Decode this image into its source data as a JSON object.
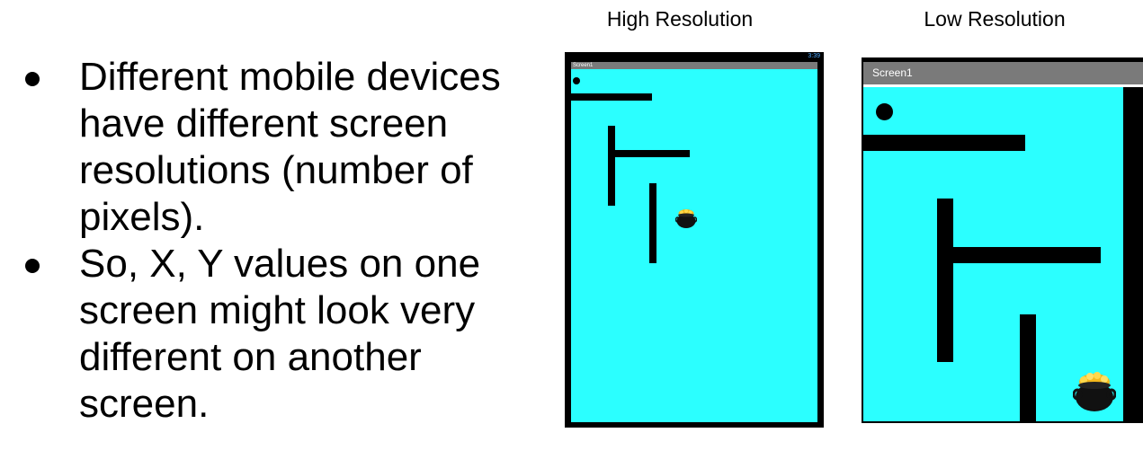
{
  "slide": {
    "bullets": [
      "Different mobile devices have different screen resolutions (number of pixels).",
      "So, X, Y values on one screen might look very different on another screen."
    ]
  },
  "captions": {
    "high": "High Resolution",
    "low": "Low Resolution"
  },
  "high_res_device": {
    "status_time": "3:39",
    "title": "Screen1",
    "background_color": "#2bffff"
  },
  "low_res_device": {
    "title": "Screen1",
    "background_color": "#2bffff"
  },
  "icons": {
    "ball": "ball-sprite",
    "pot": "pot-of-gold-sprite",
    "status": "signal-battery-icons"
  }
}
